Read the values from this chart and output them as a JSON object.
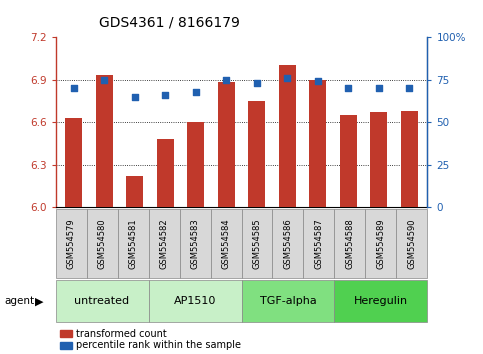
{
  "title": "GDS4361 / 8166179",
  "samples": [
    "GSM554579",
    "GSM554580",
    "GSM554581",
    "GSM554582",
    "GSM554583",
    "GSM554584",
    "GSM554585",
    "GSM554586",
    "GSM554587",
    "GSM554588",
    "GSM554589",
    "GSM554590"
  ],
  "bar_values": [
    6.63,
    6.93,
    6.22,
    6.48,
    6.6,
    6.88,
    6.75,
    7.0,
    6.9,
    6.65,
    6.67,
    6.68
  ],
  "dot_values": [
    70,
    75,
    65,
    66,
    68,
    75,
    73,
    76,
    74,
    70,
    70,
    70
  ],
  "bar_color": "#c0392b",
  "dot_color": "#2060b0",
  "ylim_left": [
    6.0,
    7.2
  ],
  "ylim_right": [
    0,
    100
  ],
  "yticks_left": [
    6.0,
    6.3,
    6.6,
    6.9,
    7.2
  ],
  "yticks_right": [
    0,
    25,
    50,
    75,
    100
  ],
  "ytick_labels_right": [
    "0",
    "25",
    "50",
    "75",
    "100%"
  ],
  "groups": [
    {
      "label": "untreated",
      "start": 0,
      "end": 2,
      "color": "#c8f0c8"
    },
    {
      "label": "AP1510",
      "start": 3,
      "end": 5,
      "color": "#c8f0c8"
    },
    {
      "label": "TGF-alpha",
      "start": 6,
      "end": 8,
      "color": "#80e080"
    },
    {
      "label": "Heregulin",
      "start": 9,
      "end": 11,
      "color": "#50d050"
    }
  ],
  "agent_label": "agent",
  "legend_bar_label": "transformed count",
  "legend_dot_label": "percentile rank within the sample",
  "bar_width": 0.55,
  "title_fontsize": 10,
  "tick_fontsize": 7.5,
  "sample_fontsize": 6,
  "group_label_fontsize": 8,
  "legend_fontsize": 7
}
